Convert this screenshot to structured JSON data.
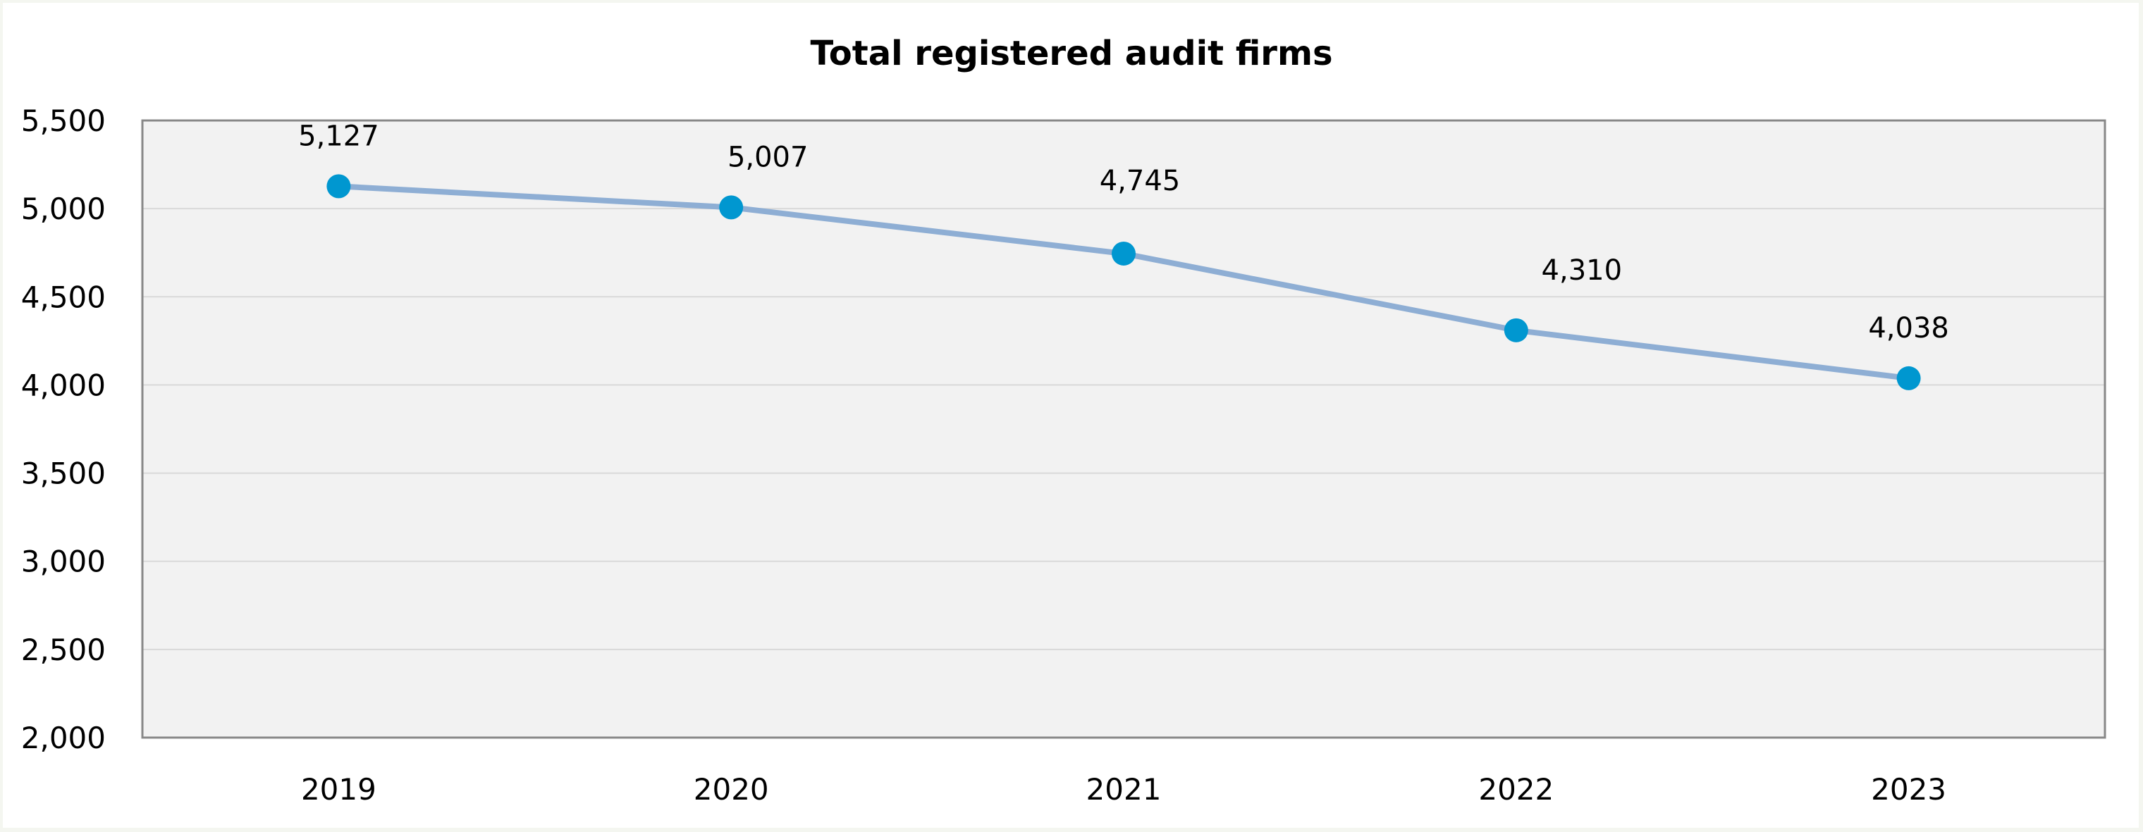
{
  "chart_data": {
    "type": "line",
    "title": "Total registered audit firms",
    "xlabel": "",
    "ylabel": "",
    "categories": [
      "2019",
      "2020",
      "2021",
      "2022",
      "2023"
    ],
    "series": [
      {
        "values": [
          5127,
          5007,
          4745,
          4310,
          4038
        ],
        "data_labels": [
          "5,127",
          "5,007",
          "4,745",
          "4,310",
          "4,038"
        ]
      }
    ],
    "ylim": [
      2000,
      5500
    ],
    "yticks": [
      2000,
      2500,
      3000,
      3500,
      4000,
      4500,
      5000,
      5500
    ],
    "ytick_labels": [
      "2,000",
      "2,500",
      "3,000",
      "3,500",
      "4,000",
      "4,500",
      "5,000",
      "5,500"
    ],
    "grid": true,
    "legend": "none",
    "colors": {
      "line": "#8eaed4",
      "marker": "#0097d0",
      "plot_background": "#f2f2f2",
      "gridline": "#d9d9d9",
      "axis": "#888888"
    }
  }
}
